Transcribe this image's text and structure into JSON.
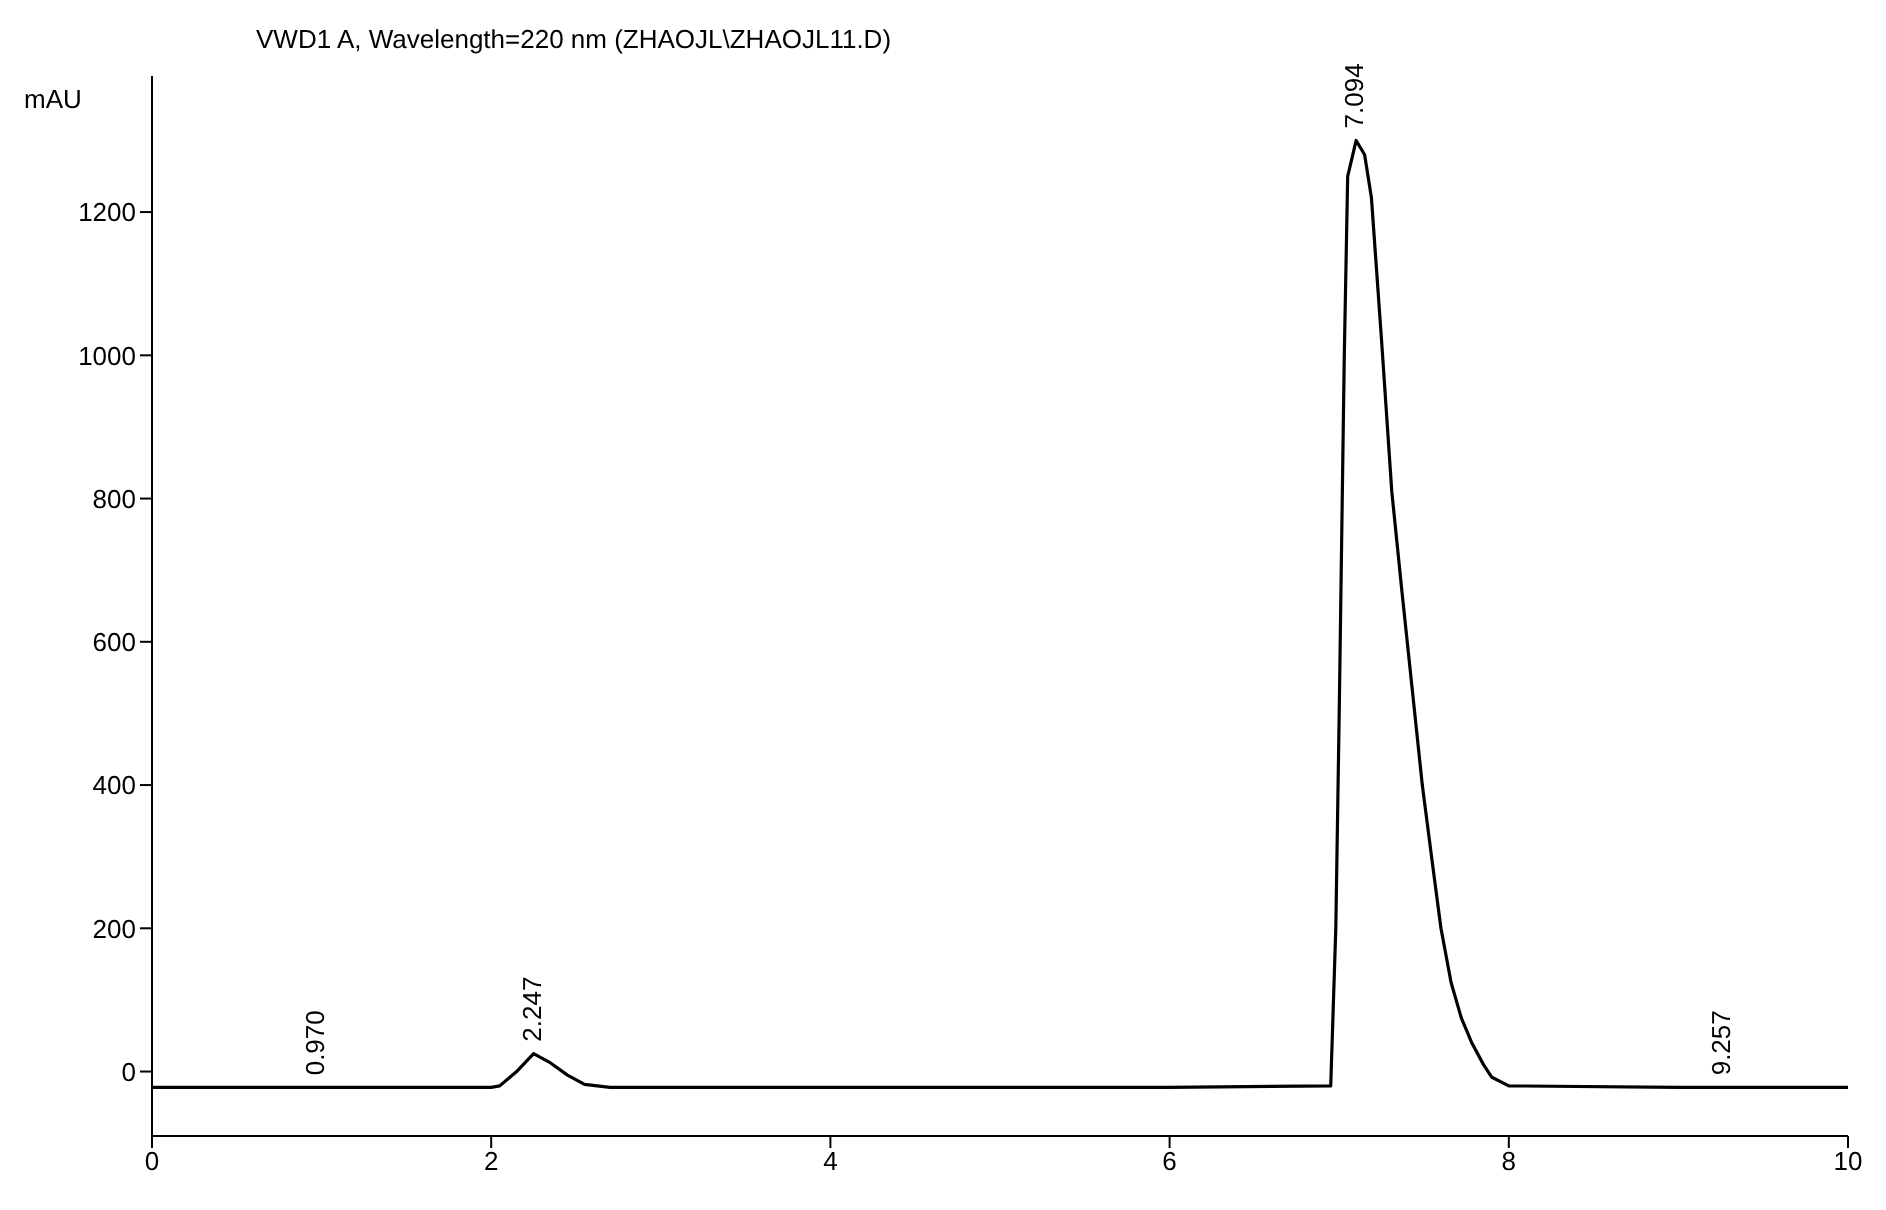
{
  "chart_data": {
    "type": "line",
    "title": "VWD1 A, Wavelength=220 nm (ZHAOJL\\ZHAOJL11.D)",
    "ylabel": "mAU",
    "series": [
      {
        "color": "#000000",
        "x": [
          0,
          1,
          2,
          2.05,
          2.15,
          2.25,
          2.35,
          2.45,
          2.55,
          2.7,
          3,
          4,
          5,
          6,
          6.95,
          6.98,
          7.0,
          7.03,
          7.05,
          7.1,
          7.15,
          7.19,
          7.25,
          7.31,
          7.37,
          7.43,
          7.49,
          7.55,
          7.6,
          7.66,
          7.72,
          7.78,
          7.85,
          7.9,
          8,
          9,
          10
        ],
        "values": [
          -22,
          -22,
          -22,
          -20,
          0,
          25,
          12,
          -5,
          -18,
          -22,
          -22,
          -22,
          -22,
          -22,
          -20,
          200,
          500,
          1000,
          1250,
          1300,
          1280,
          1220,
          1020,
          810,
          670,
          535,
          400,
          290,
          200,
          124,
          75,
          41,
          10,
          -8,
          -20,
          -22,
          -22
        ]
      }
    ],
    "xlim": [
      0,
      10
    ],
    "xticks": [
      0,
      2,
      4,
      6,
      8,
      10
    ],
    "ylim": [
      -90,
      1390
    ],
    "yticks": [
      0,
      200,
      400,
      600,
      800,
      1000,
      1200
    ],
    "grid": false,
    "marker": "none",
    "line_style": "solid",
    "legend": false,
    "annotations": [
      {
        "text": "0.970",
        "x": 0.97,
        "y": -22
      },
      {
        "text": "2.247",
        "x": 2.247,
        "y": 25
      },
      {
        "text": "7.094",
        "x": 7.094,
        "y": 1300
      },
      {
        "text": "9.257",
        "x": 9.257,
        "y": -22
      }
    ]
  }
}
